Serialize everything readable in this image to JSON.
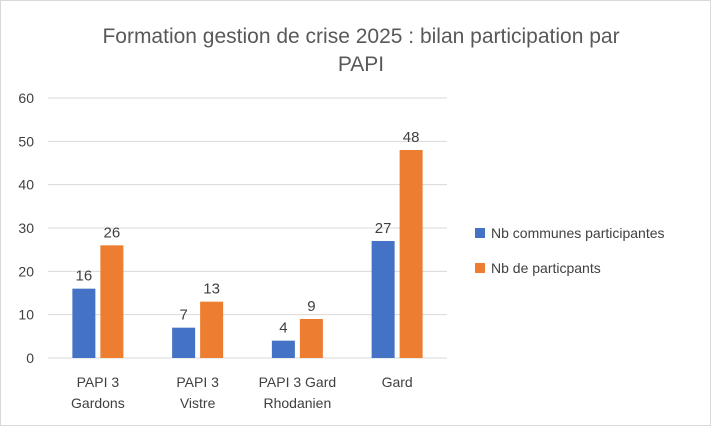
{
  "chart_data": {
    "type": "bar",
    "title_lines": [
      "Formation gestion de crise 2025 : bilan participation par",
      "PAPI"
    ],
    "categories": [
      [
        "PAPI 3",
        "Gardons"
      ],
      [
        "PAPI 3",
        "Vistre"
      ],
      [
        "PAPI 3 Gard",
        "Rhodanien"
      ],
      [
        "Gard"
      ]
    ],
    "series": [
      {
        "name": "Nb communes participantes",
        "color": "#4472c4",
        "values": [
          16,
          7,
          4,
          27
        ]
      },
      {
        "name": "Nb de particpants",
        "color": "#ed7d31",
        "values": [
          26,
          13,
          9,
          48
        ]
      }
    ],
    "yticks": [
      "0",
      "10",
      "20",
      "30",
      "40",
      "50",
      "60"
    ],
    "ylim": [
      0,
      60
    ],
    "grid": true,
    "legend_position": "right",
    "data_labels": true
  }
}
